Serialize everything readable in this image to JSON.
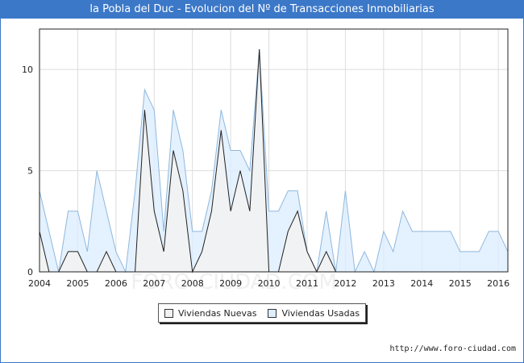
{
  "title": "la Pobla del Duc - Evolucion del Nº de Transacciones Inmobiliarias",
  "source": "http://www.foro-ciudad.com",
  "watermark": "FORO-CIUDAD.COM",
  "colors": {
    "title_bg": "#3c78c8",
    "usadas_fill": "#ddeeff",
    "usadas_line": "#8fb8dc",
    "nuevas_fill": "#f2f2f2",
    "nuevas_line": "#222222",
    "grid": "#dddddd"
  },
  "chart_data": {
    "type": "area",
    "x_ticks": [
      "2004",
      "2005",
      "2006",
      "2007",
      "2008",
      "2009",
      "2010",
      "2011",
      "2012",
      "2013",
      "2014",
      "2015",
      "2016"
    ],
    "y_ticks": [
      "0",
      "5",
      "10"
    ],
    "xlim": [
      2004,
      2016.25
    ],
    "ylim": [
      0,
      12
    ],
    "grid": true,
    "legend_position": "bottom",
    "x": [
      2004.0,
      2004.25,
      2004.5,
      2004.75,
      2005.0,
      2005.25,
      2005.5,
      2005.75,
      2006.0,
      2006.25,
      2006.5,
      2006.75,
      2007.0,
      2007.25,
      2007.5,
      2007.75,
      2008.0,
      2008.25,
      2008.5,
      2008.75,
      2009.0,
      2009.25,
      2009.5,
      2009.75,
      2010.0,
      2010.25,
      2010.5,
      2010.75,
      2011.0,
      2011.25,
      2011.5,
      2011.75,
      2012.0,
      2012.25,
      2012.5,
      2012.75,
      2013.0,
      2013.25,
      2013.5,
      2013.75,
      2014.0,
      2014.25,
      2014.5,
      2014.75,
      2015.0,
      2015.25,
      2015.5,
      2015.75,
      2016.0,
      2016.25
    ],
    "series": [
      {
        "name": "Viviendas Nuevas",
        "values": [
          2,
          0,
          0,
          1,
          1,
          0,
          0,
          1,
          0,
          0,
          0,
          8,
          3,
          1,
          6,
          4,
          0,
          1,
          3,
          7,
          3,
          5,
          3,
          11,
          0,
          0,
          2,
          3,
          1,
          0,
          1,
          0,
          0,
          0,
          0,
          0,
          0,
          0,
          0,
          0,
          0,
          0,
          0,
          0,
          0,
          0,
          0,
          0,
          0,
          0
        ]
      },
      {
        "name": "Viviendas Usadas",
        "values": [
          4,
          2,
          0,
          3,
          3,
          1,
          5,
          3,
          1,
          0,
          4,
          9,
          8,
          2,
          8,
          6,
          2,
          2,
          4,
          8,
          6,
          6,
          5,
          11,
          3,
          3,
          4,
          4,
          1,
          0,
          3,
          0,
          4,
          0,
          1,
          0,
          2,
          1,
          3,
          2,
          2,
          2,
          2,
          2,
          1,
          1,
          1,
          2,
          2,
          1
        ]
      }
    ]
  }
}
